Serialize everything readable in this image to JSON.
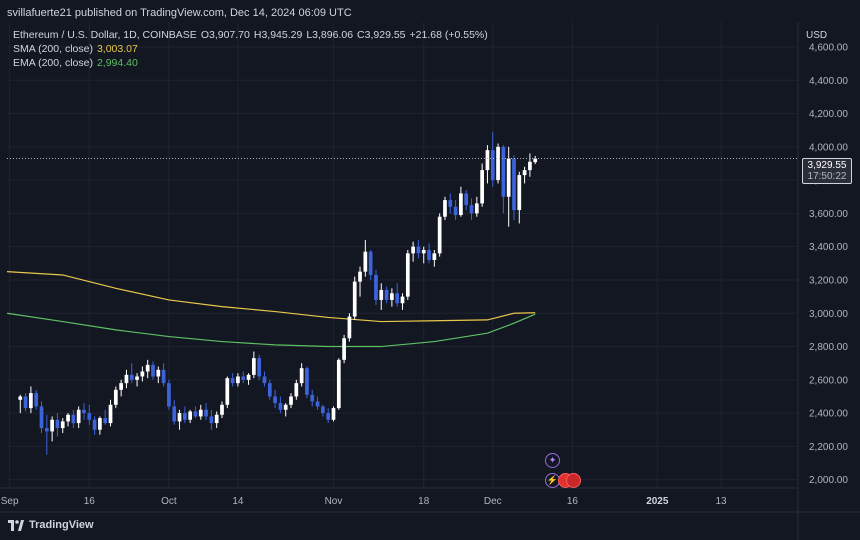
{
  "header": {
    "text": "svillafuerte21 published on TradingView.com, Dec 14, 2024 06:09 UTC"
  },
  "legend": {
    "symbol": "Ethereum / U.S. Dollar, 1D, COINBASE",
    "open": "O3,907.70",
    "high": "H3,945.29",
    "low": "L3,896.06",
    "close": "C3,929.55",
    "change": "+21.68 (+0.55%)",
    "sma_label": "SMA (200, close)",
    "sma_value": "3,003.07",
    "ema_label": "EMA (200, close)",
    "ema_value": "2,994.40"
  },
  "price_axis": {
    "currency": "USD"
  },
  "price_label": {
    "price": "3,929.55",
    "countdown": "17:50:22"
  },
  "footer": {
    "brand": "TradingView"
  },
  "colors": {
    "background": "#131722",
    "up": "#ffffff",
    "down": "#3d63db",
    "sma": "#e8c84a",
    "ema": "#5fbf64",
    "grid": "#1f2330"
  },
  "icons": [
    "tradingview-logo-icon",
    "event-star-icon",
    "event-lightning-icon",
    "flag-event-icon"
  ],
  "chart_data": {
    "type": "candlestick",
    "title": "Ethereum / U.S. Dollar, 1D, COINBASE",
    "ylim": [
      1950,
      4750
    ],
    "grid": true,
    "y_ticks": [
      "2,000.00",
      "2,200.00",
      "2,400.00",
      "2,600.00",
      "2,800.00",
      "3,000.00",
      "3,200.00",
      "3,400.00",
      "3,600.00",
      "3,800.00",
      "4,000.00",
      "4,200.00",
      "4,400.00",
      "4,600.00"
    ],
    "x_ticks": [
      {
        "label": "Sep",
        "day": 0,
        "bold": false
      },
      {
        "label": "16",
        "day": 15,
        "bold": false
      },
      {
        "label": "Oct",
        "day": 30,
        "bold": false
      },
      {
        "label": "14",
        "day": 43,
        "bold": false
      },
      {
        "label": "Nov",
        "day": 61,
        "bold": false
      },
      {
        "label": "18",
        "day": 78,
        "bold": false
      },
      {
        "label": "Dec",
        "day": 91,
        "bold": false
      },
      {
        "label": "16",
        "day": 106,
        "bold": false
      },
      {
        "label": "2025",
        "day": 122,
        "bold": true
      },
      {
        "label": "13",
        "day": 134,
        "bold": false
      }
    ],
    "days": 149,
    "candles": [
      {
        "o": 2480,
        "h": 2510,
        "l": 2400,
        "c": 2500
      },
      {
        "o": 2500,
        "h": 2520,
        "l": 2410,
        "c": 2430
      },
      {
        "o": 2430,
        "h": 2560,
        "l": 2400,
        "c": 2520
      },
      {
        "o": 2520,
        "h": 2540,
        "l": 2420,
        "c": 2440
      },
      {
        "o": 2440,
        "h": 2470,
        "l": 2280,
        "c": 2310
      },
      {
        "o": 2310,
        "h": 2390,
        "l": 2150,
        "c": 2290
      },
      {
        "o": 2290,
        "h": 2380,
        "l": 2230,
        "c": 2360
      },
      {
        "o": 2360,
        "h": 2400,
        "l": 2260,
        "c": 2310
      },
      {
        "o": 2310,
        "h": 2370,
        "l": 2280,
        "c": 2350
      },
      {
        "o": 2350,
        "h": 2400,
        "l": 2320,
        "c": 2390
      },
      {
        "o": 2390,
        "h": 2420,
        "l": 2310,
        "c": 2340
      },
      {
        "o": 2340,
        "h": 2440,
        "l": 2310,
        "c": 2420
      },
      {
        "o": 2420,
        "h": 2460,
        "l": 2360,
        "c": 2400
      },
      {
        "o": 2400,
        "h": 2450,
        "l": 2330,
        "c": 2360
      },
      {
        "o": 2360,
        "h": 2380,
        "l": 2270,
        "c": 2300
      },
      {
        "o": 2300,
        "h": 2380,
        "l": 2270,
        "c": 2370
      },
      {
        "o": 2370,
        "h": 2420,
        "l": 2330,
        "c": 2340
      },
      {
        "o": 2340,
        "h": 2480,
        "l": 2320,
        "c": 2450
      },
      {
        "o": 2450,
        "h": 2560,
        "l": 2430,
        "c": 2540
      },
      {
        "o": 2540,
        "h": 2600,
        "l": 2500,
        "c": 2580
      },
      {
        "o": 2580,
        "h": 2660,
        "l": 2550,
        "c": 2630
      },
      {
        "o": 2630,
        "h": 2700,
        "l": 2580,
        "c": 2600
      },
      {
        "o": 2600,
        "h": 2640,
        "l": 2560,
        "c": 2620
      },
      {
        "o": 2620,
        "h": 2680,
        "l": 2590,
        "c": 2650
      },
      {
        "o": 2650,
        "h": 2720,
        "l": 2610,
        "c": 2690
      },
      {
        "o": 2690,
        "h": 2710,
        "l": 2600,
        "c": 2620
      },
      {
        "o": 2620,
        "h": 2680,
        "l": 2580,
        "c": 2660
      },
      {
        "o": 2660,
        "h": 2700,
        "l": 2560,
        "c": 2580
      },
      {
        "o": 2580,
        "h": 2600,
        "l": 2420,
        "c": 2440
      },
      {
        "o": 2440,
        "h": 2480,
        "l": 2330,
        "c": 2350
      },
      {
        "o": 2350,
        "h": 2420,
        "l": 2300,
        "c": 2400
      },
      {
        "o": 2400,
        "h": 2440,
        "l": 2340,
        "c": 2360
      },
      {
        "o": 2360,
        "h": 2420,
        "l": 2340,
        "c": 2410
      },
      {
        "o": 2410,
        "h": 2440,
        "l": 2370,
        "c": 2380
      },
      {
        "o": 2380,
        "h": 2450,
        "l": 2360,
        "c": 2420
      },
      {
        "o": 2420,
        "h": 2460,
        "l": 2360,
        "c": 2380
      },
      {
        "o": 2380,
        "h": 2420,
        "l": 2300,
        "c": 2340
      },
      {
        "o": 2340,
        "h": 2410,
        "l": 2310,
        "c": 2390
      },
      {
        "o": 2390,
        "h": 2470,
        "l": 2370,
        "c": 2450
      },
      {
        "o": 2450,
        "h": 2620,
        "l": 2430,
        "c": 2610
      },
      {
        "o": 2610,
        "h": 2640,
        "l": 2560,
        "c": 2580
      },
      {
        "o": 2580,
        "h": 2640,
        "l": 2560,
        "c": 2620
      },
      {
        "o": 2620,
        "h": 2650,
        "l": 2580,
        "c": 2600
      },
      {
        "o": 2600,
        "h": 2640,
        "l": 2570,
        "c": 2630
      },
      {
        "o": 2630,
        "h": 2770,
        "l": 2610,
        "c": 2730
      },
      {
        "o": 2730,
        "h": 2750,
        "l": 2600,
        "c": 2620
      },
      {
        "o": 2620,
        "h": 2650,
        "l": 2560,
        "c": 2580
      },
      {
        "o": 2580,
        "h": 2600,
        "l": 2480,
        "c": 2500
      },
      {
        "o": 2500,
        "h": 2540,
        "l": 2430,
        "c": 2460
      },
      {
        "o": 2460,
        "h": 2500,
        "l": 2400,
        "c": 2420
      },
      {
        "o": 2420,
        "h": 2460,
        "l": 2380,
        "c": 2450
      },
      {
        "o": 2450,
        "h": 2520,
        "l": 2430,
        "c": 2500
      },
      {
        "o": 2500,
        "h": 2600,
        "l": 2480,
        "c": 2580
      },
      {
        "o": 2580,
        "h": 2700,
        "l": 2560,
        "c": 2670
      },
      {
        "o": 2670,
        "h": 2680,
        "l": 2490,
        "c": 2510
      },
      {
        "o": 2510,
        "h": 2540,
        "l": 2440,
        "c": 2470
      },
      {
        "o": 2470,
        "h": 2500,
        "l": 2420,
        "c": 2440
      },
      {
        "o": 2440,
        "h": 2450,
        "l": 2380,
        "c": 2400
      },
      {
        "o": 2400,
        "h": 2430,
        "l": 2340,
        "c": 2360
      },
      {
        "o": 2360,
        "h": 2440,
        "l": 2350,
        "c": 2430
      },
      {
        "o": 2430,
        "h": 2730,
        "l": 2420,
        "c": 2720
      },
      {
        "o": 2720,
        "h": 2870,
        "l": 2700,
        "c": 2850
      },
      {
        "o": 2850,
        "h": 3000,
        "l": 2830,
        "c": 2980
      },
      {
        "o": 2980,
        "h": 3220,
        "l": 2960,
        "c": 3190
      },
      {
        "o": 3190,
        "h": 3280,
        "l": 3100,
        "c": 3250
      },
      {
        "o": 3250,
        "h": 3440,
        "l": 3220,
        "c": 3370
      },
      {
        "o": 3370,
        "h": 3380,
        "l": 3200,
        "c": 3230
      },
      {
        "o": 3230,
        "h": 3260,
        "l": 3050,
        "c": 3080
      },
      {
        "o": 3080,
        "h": 3180,
        "l": 3020,
        "c": 3140
      },
      {
        "o": 3140,
        "h": 3160,
        "l": 3060,
        "c": 3080
      },
      {
        "o": 3080,
        "h": 3150,
        "l": 3040,
        "c": 3120
      },
      {
        "o": 3120,
        "h": 3180,
        "l": 3040,
        "c": 3060
      },
      {
        "o": 3060,
        "h": 3120,
        "l": 3020,
        "c": 3100
      },
      {
        "o": 3100,
        "h": 3380,
        "l": 3080,
        "c": 3360
      },
      {
        "o": 3360,
        "h": 3430,
        "l": 3310,
        "c": 3400
      },
      {
        "o": 3400,
        "h": 3440,
        "l": 3330,
        "c": 3360
      },
      {
        "o": 3360,
        "h": 3400,
        "l": 3300,
        "c": 3380
      },
      {
        "o": 3380,
        "h": 3420,
        "l": 3300,
        "c": 3320
      },
      {
        "o": 3320,
        "h": 3380,
        "l": 3280,
        "c": 3360
      },
      {
        "o": 3360,
        "h": 3600,
        "l": 3340,
        "c": 3580
      },
      {
        "o": 3580,
        "h": 3700,
        "l": 3560,
        "c": 3680
      },
      {
        "o": 3680,
        "h": 3720,
        "l": 3600,
        "c": 3640
      },
      {
        "o": 3640,
        "h": 3680,
        "l": 3560,
        "c": 3590
      },
      {
        "o": 3590,
        "h": 3760,
        "l": 3580,
        "c": 3720
      },
      {
        "o": 3720,
        "h": 3740,
        "l": 3620,
        "c": 3650
      },
      {
        "o": 3650,
        "h": 3690,
        "l": 3560,
        "c": 3600
      },
      {
        "o": 3600,
        "h": 3700,
        "l": 3580,
        "c": 3660
      },
      {
        "o": 3660,
        "h": 3900,
        "l": 3640,
        "c": 3860
      },
      {
        "o": 3860,
        "h": 4010,
        "l": 3780,
        "c": 3980
      },
      {
        "o": 3980,
        "h": 4090,
        "l": 3760,
        "c": 3800
      },
      {
        "o": 3800,
        "h": 4020,
        "l": 3780,
        "c": 4000
      },
      {
        "o": 4000,
        "h": 4010,
        "l": 3600,
        "c": 3700
      },
      {
        "o": 3700,
        "h": 4000,
        "l": 3520,
        "c": 3930
      },
      {
        "o": 3930,
        "h": 3950,
        "l": 3560,
        "c": 3620
      },
      {
        "o": 3620,
        "h": 3850,
        "l": 3540,
        "c": 3830
      },
      {
        "o": 3830,
        "h": 3880,
        "l": 3780,
        "c": 3860
      },
      {
        "o": 3860,
        "h": 3960,
        "l": 3820,
        "c": 3910
      },
      {
        "o": 3907.7,
        "h": 3945.29,
        "l": 3896.06,
        "c": 3929.55
      }
    ],
    "sma_200": [
      3250,
      3230,
      3150,
      3080,
      3040,
      3010,
      2975,
      2950,
      2955,
      2960,
      3000,
      3003.07
    ],
    "ema_200": [
      3000,
      2950,
      2900,
      2860,
      2830,
      2810,
      2800,
      2800,
      2830,
      2880,
      2940,
      2994.4
    ],
    "ma_days": [
      0,
      10,
      20,
      30,
      40,
      50,
      60,
      70,
      80,
      90,
      95,
      99
    ],
    "last_price": 3929.55
  }
}
